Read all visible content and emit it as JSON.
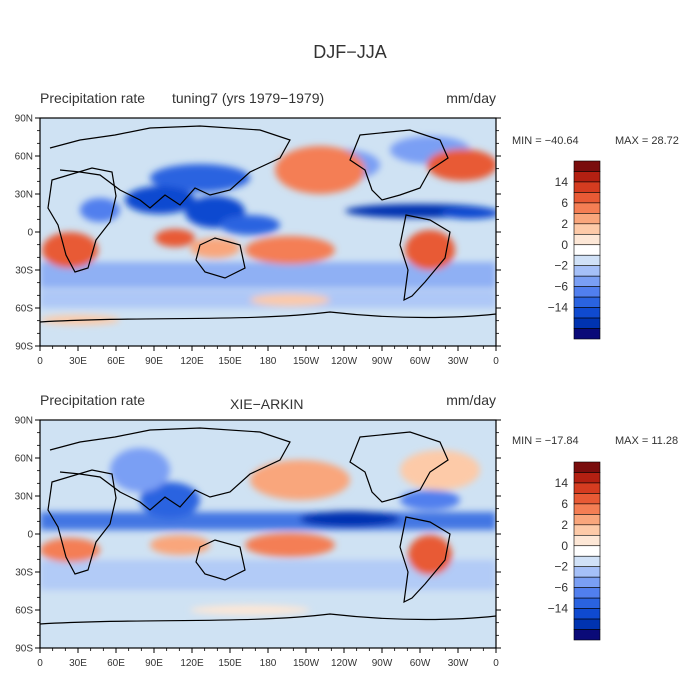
{
  "figure": {
    "title": "DJF−JJA",
    "colors": {
      "background": "#ffffff",
      "map_background": "#cfe2f3",
      "coast": "#000000",
      "text": "#333333"
    }
  },
  "colorbar": {
    "colors": [
      "#0a0a78",
      "#0033b0",
      "#0f4ad0",
      "#2a63e0",
      "#517fee",
      "#7a9ff4",
      "#a5c0f8",
      "#d0e1f7",
      "#ffffff",
      "#fde7d6",
      "#fdcaa8",
      "#f9a67c",
      "#f47e54",
      "#e85a35",
      "#d53c20",
      "#b32012",
      "#7a0d0d"
    ],
    "label_values": [
      14,
      6,
      2,
      0,
      -2,
      -6,
      -14
    ],
    "label_text": [
      "14",
      "6",
      "2",
      "0",
      "−2",
      "−6",
      "−14"
    ]
  },
  "chart_data": [
    {
      "type": "heatmap",
      "name_text": "tuning7 (yrs 1979−1979)",
      "variable": "Precipitation rate",
      "units": "mm/day",
      "min_label": "MIN = −40.64",
      "max_label": "MAX =  28.72",
      "min": -40.64,
      "max": 28.72,
      "x_ticks": [
        "0",
        "30E",
        "60E",
        "90E",
        "120E",
        "150E",
        "180",
        "150W",
        "120W",
        "90W",
        "60W",
        "30W",
        "0"
      ],
      "y_ticks": [
        "90N",
        "60N",
        "30N",
        "0",
        "30S",
        "60S",
        "90S"
      ],
      "xlim": [
        0,
        360
      ],
      "ylim": [
        -90,
        90
      ]
    },
    {
      "type": "heatmap",
      "name_text": "XIE−ARKIN",
      "variable": "Precipitation rate",
      "units": "mm/day",
      "min_label": "MIN = −17.84",
      "max_label": "MAX =  11.28",
      "min": -17.84,
      "max": 11.28,
      "x_ticks": [
        "0",
        "30E",
        "60E",
        "90E",
        "120E",
        "150E",
        "180",
        "150W",
        "120W",
        "90W",
        "60W",
        "30W",
        "0"
      ],
      "y_ticks": [
        "90N",
        "60N",
        "30N",
        "0",
        "30S",
        "60S",
        "90S"
      ],
      "xlim": [
        0,
        360
      ],
      "ylim": [
        -90,
        90
      ]
    }
  ]
}
